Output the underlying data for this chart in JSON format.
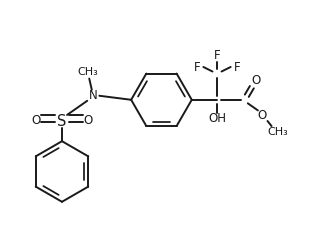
{
  "bg_color": "#ffffff",
  "line_color": "#1a1a1a",
  "line_width": 1.4,
  "font_size": 8.5,
  "figsize": [
    3.31,
    2.42
  ],
  "dpi": 100,
  "xlim": [
    0.0,
    6.5
  ],
  "ylim": [
    0.0,
    4.5
  ]
}
